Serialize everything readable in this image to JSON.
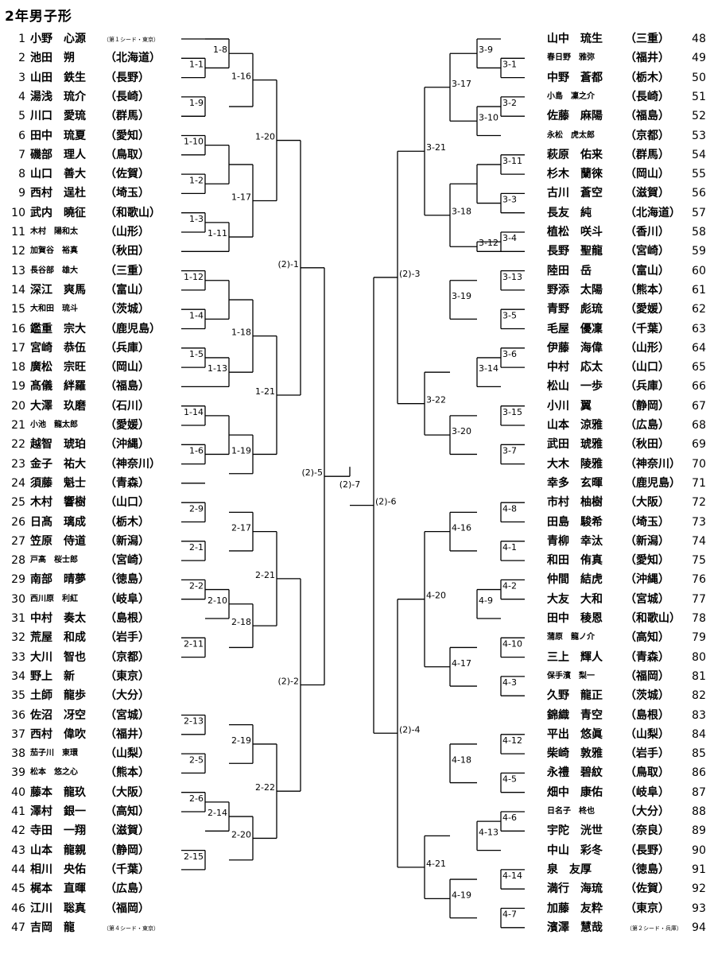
{
  "title": "2年男子形",
  "left_players": [
    {
      "num": "1",
      "name": "小野　心源",
      "pref": "",
      "note": "（第１シード・東京）"
    },
    {
      "num": "2",
      "name": "池田　朔",
      "pref": "（北海道）"
    },
    {
      "num": "3",
      "name": "山田　鉄生",
      "pref": "（長野）"
    },
    {
      "num": "4",
      "name": "湯浅　琉介",
      "pref": "（長崎）"
    },
    {
      "num": "5",
      "name": "川口　愛琉",
      "pref": "（群馬）"
    },
    {
      "num": "6",
      "name": "田中　琉夏",
      "pref": "（愛知）"
    },
    {
      "num": "7",
      "name": "磯部　理人",
      "pref": "（鳥取）"
    },
    {
      "num": "8",
      "name": "山口　善大",
      "pref": "（佐賀）"
    },
    {
      "num": "9",
      "name": "西村　逞杜",
      "pref": "（埼玉）"
    },
    {
      "num": "10",
      "name": "武内　曉征",
      "pref": "（和歌山）"
    },
    {
      "num": "11",
      "name": "木村　陽和太",
      "pref": "（山形）",
      "small": true
    },
    {
      "num": "12",
      "name": "加賀谷　裕真",
      "pref": "（秋田）",
      "small": true
    },
    {
      "num": "13",
      "name": "長谷部　雄大",
      "pref": "（三重）",
      "small": true
    },
    {
      "num": "14",
      "name": "深江　爽馬",
      "pref": "（富山）"
    },
    {
      "num": "15",
      "name": "大和田　琉斗",
      "pref": "（茨城）",
      "small": true
    },
    {
      "num": "16",
      "name": "鑑重　宗大",
      "pref": "（鹿児島）"
    },
    {
      "num": "17",
      "name": "宮崎　恭伍",
      "pref": "（兵庫）"
    },
    {
      "num": "18",
      "name": "廣松　宗旺",
      "pref": "（岡山）"
    },
    {
      "num": "19",
      "name": "髙儀　絆羅",
      "pref": "（福島）"
    },
    {
      "num": "20",
      "name": "大澤　玖磨",
      "pref": "（石川）"
    },
    {
      "num": "21",
      "name": "小池　龍太郎",
      "pref": "（愛媛）",
      "small": true
    },
    {
      "num": "22",
      "name": "越智　琥珀",
      "pref": "（沖縄）"
    },
    {
      "num": "23",
      "name": "金子　祐大",
      "pref": "（神奈川）"
    },
    {
      "num": "24",
      "name": "須藤　魁士",
      "pref": "（青森）"
    },
    {
      "num": "25",
      "name": "木村　響樹",
      "pref": "（山口）"
    },
    {
      "num": "26",
      "name": "日髙　璃成",
      "pref": "（栃木）"
    },
    {
      "num": "27",
      "name": "笠原　侍道",
      "pref": "（新潟）"
    },
    {
      "num": "28",
      "name": "戸髙　桜士郎",
      "pref": "（宮崎）",
      "small": true
    },
    {
      "num": "29",
      "name": "南部　晴夢",
      "pref": "（徳島）"
    },
    {
      "num": "30",
      "name": "西川原　利紅",
      "pref": "（岐阜）",
      "small": true
    },
    {
      "num": "31",
      "name": "中村　奏太",
      "pref": "（島根）"
    },
    {
      "num": "32",
      "name": "荒屋　和成",
      "pref": "（岩手）"
    },
    {
      "num": "33",
      "name": "大川　智也",
      "pref": "（京都）"
    },
    {
      "num": "34",
      "name": "野上　新",
      "pref": "（東京）"
    },
    {
      "num": "35",
      "name": "土師　龍歩",
      "pref": "（大分）"
    },
    {
      "num": "36",
      "name": "佐沼　冴空",
      "pref": "（宮城）"
    },
    {
      "num": "37",
      "name": "西村　偉吹",
      "pref": "（福井）"
    },
    {
      "num": "38",
      "name": "茄子川　東環",
      "pref": "（山梨）",
      "small": true
    },
    {
      "num": "39",
      "name": "松本　悠之心",
      "pref": "（熊本）",
      "small": true
    },
    {
      "num": "40",
      "name": "藤本　龍玖",
      "pref": "（大阪）"
    },
    {
      "num": "41",
      "name": "澤村　銀一",
      "pref": "（高知）"
    },
    {
      "num": "42",
      "name": "寺田　一翔",
      "pref": "（滋賀）"
    },
    {
      "num": "43",
      "name": "山本　龍親",
      "pref": "（静岡）"
    },
    {
      "num": "44",
      "name": "相川　央佑",
      "pref": "（千葉）"
    },
    {
      "num": "45",
      "name": "梶本　直暉",
      "pref": "（広島）"
    },
    {
      "num": "46",
      "name": "江川　聡真",
      "pref": "（福岡）"
    },
    {
      "num": "47",
      "name": "吉岡　龍",
      "pref": "",
      "note": "（第４シード・東京）"
    }
  ],
  "right_players": [
    {
      "num": "48",
      "name": "山中　琉生",
      "pref": "（三重）"
    },
    {
      "num": "49",
      "name": "春日野　雅弥",
      "pref": "（福井）",
      "small": true
    },
    {
      "num": "50",
      "name": "中野　蒼都",
      "pref": "（栃木）"
    },
    {
      "num": "51",
      "name": "小島　凜之介",
      "pref": "（長崎）",
      "small": true
    },
    {
      "num": "52",
      "name": "佐藤　麻陽",
      "pref": "（福島）"
    },
    {
      "num": "53",
      "name": "永松　虎太郎",
      "pref": "（京都）",
      "small": true
    },
    {
      "num": "54",
      "name": "萩原　佑来",
      "pref": "（群馬）"
    },
    {
      "num": "55",
      "name": "杉木　蘭徠",
      "pref": "（岡山）"
    },
    {
      "num": "56",
      "name": "古川　蒼空",
      "pref": "（滋賀）"
    },
    {
      "num": "57",
      "name": "長友　純",
      "pref": "（北海道）"
    },
    {
      "num": "58",
      "name": "植松　咲斗",
      "pref": "（香川）"
    },
    {
      "num": "59",
      "name": "長野　聖龍",
      "pref": "（宮崎）"
    },
    {
      "num": "60",
      "name": "陸田　岳",
      "pref": "（富山）"
    },
    {
      "num": "61",
      "name": "野添　太陽",
      "pref": "（熊本）"
    },
    {
      "num": "62",
      "name": "青野　彪琉",
      "pref": "（愛媛）"
    },
    {
      "num": "63",
      "name": "毛屋　優凜",
      "pref": "（千葉）"
    },
    {
      "num": "64",
      "name": "伊藤　海偉",
      "pref": "（山形）"
    },
    {
      "num": "65",
      "name": "中村　応太",
      "pref": "（山口）"
    },
    {
      "num": "66",
      "name": "松山　一歩",
      "pref": "（兵庫）"
    },
    {
      "num": "67",
      "name": "小川　翼",
      "pref": "（静岡）"
    },
    {
      "num": "68",
      "name": "山本　涼雅",
      "pref": "（広島）"
    },
    {
      "num": "69",
      "name": "武田　琥雅",
      "pref": "（秋田）"
    },
    {
      "num": "70",
      "name": "大木　陵雅",
      "pref": "（神奈川）"
    },
    {
      "num": "71",
      "name": "幸多　玄暉",
      "pref": "（鹿児島）"
    },
    {
      "num": "72",
      "name": "市村　柚樹",
      "pref": "（大阪）"
    },
    {
      "num": "73",
      "name": "田島　駿希",
      "pref": "（埼玉）"
    },
    {
      "num": "74",
      "name": "青柳　幸汰",
      "pref": "（新潟）"
    },
    {
      "num": "75",
      "name": "和田　侑真",
      "pref": "（愛知）"
    },
    {
      "num": "76",
      "name": "仲間　結虎",
      "pref": "（沖縄）"
    },
    {
      "num": "77",
      "name": "大友　大和",
      "pref": "（宮城）"
    },
    {
      "num": "78",
      "name": "田中　稜恩",
      "pref": "（和歌山）"
    },
    {
      "num": "79",
      "name": "蒲原　龍ノ介",
      "pref": "（高知）",
      "small": true
    },
    {
      "num": "80",
      "name": "三上　輝人",
      "pref": "（青森）"
    },
    {
      "num": "81",
      "name": "保手濱　梨一",
      "pref": "（福岡）",
      "small": true
    },
    {
      "num": "82",
      "name": "久野　龍正",
      "pref": "（茨城）"
    },
    {
      "num": "83",
      "name": "錦織　青空",
      "pref": "（島根）"
    },
    {
      "num": "84",
      "name": "平出　悠眞",
      "pref": "（山梨）"
    },
    {
      "num": "85",
      "name": "柴崎　敦雅",
      "pref": "（岩手）"
    },
    {
      "num": "86",
      "name": "永禮　碧紋",
      "pref": "（鳥取）"
    },
    {
      "num": "87",
      "name": "畑中　康佑",
      "pref": "（岐阜）"
    },
    {
      "num": "88",
      "name": "日名子　柊也",
      "pref": "（大分）",
      "small": true
    },
    {
      "num": "89",
      "name": "宇陀　洸世",
      "pref": "（奈良）"
    },
    {
      "num": "90",
      "name": "中山　彩冬",
      "pref": "（長野）"
    },
    {
      "num": "91",
      "name": "泉　友厚",
      "pref": "（徳島）"
    },
    {
      "num": "92",
      "name": "満行　海琉",
      "pref": "（佐賀）"
    },
    {
      "num": "93",
      "name": "加藤　友粋",
      "pref": "（東京）"
    },
    {
      "num": "94",
      "name": "濱澤　慧哉",
      "pref": "",
      "note": "（第２シード・兵庫）"
    }
  ]
}
